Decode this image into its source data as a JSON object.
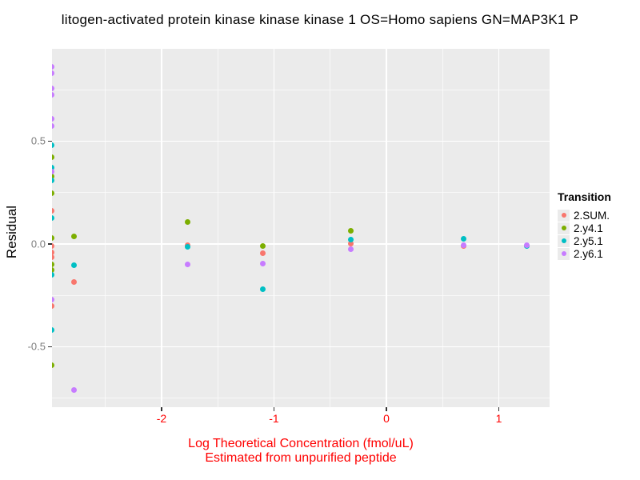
{
  "title": "litogen-activated protein kinase kinase kinase 1 OS=Homo sapiens GN=MAP3K1 P",
  "chart_data": {
    "type": "scatter",
    "title": "litogen-activated protein kinase kinase kinase 1 OS=Homo sapiens GN=MAP3K1 P",
    "xlabel": "Log Theoretical Concentration (fmol/uL)",
    "xlabel2": "Estimated from unpurified peptide",
    "ylabel": "Residual",
    "xlim": [
      -2.975,
      1.452
    ],
    "ylim": [
      -0.794,
      0.949
    ],
    "grid": true,
    "x_ticks": {
      "values": [
        -2,
        -1,
        0,
        1
      ],
      "labels": [
        "-2",
        "-1",
        "0",
        "1"
      ],
      "minor": [
        -2.5,
        -1.5,
        -0.5,
        0.5,
        1.5
      ]
    },
    "y_ticks": {
      "values": [
        0.5,
        0.0,
        -0.5
      ],
      "labels": [
        "0.5",
        "0.0",
        "-0.5"
      ],
      "minor": [
        0.75,
        0.25,
        -0.25,
        -0.75
      ]
    },
    "legend": {
      "title": "Transition",
      "position": "right"
    },
    "series": [
      {
        "name": "2.SUM.",
        "color": "#F8766D",
        "points": [
          [
            -2.98,
            0.16
          ],
          [
            -2.98,
            -0.01
          ],
          [
            -2.98,
            -0.04
          ],
          [
            -2.98,
            -0.065
          ],
          [
            -2.98,
            -0.3
          ],
          [
            -2.78,
            -0.185
          ],
          [
            -1.77,
            -0.005
          ],
          [
            -1.1,
            -0.045
          ],
          [
            -0.32,
            0.0
          ],
          [
            0.69,
            -0.01
          ]
        ]
      },
      {
        "name": "2.y4.1",
        "color": "#7CAE00",
        "points": [
          [
            -2.98,
            0.42
          ],
          [
            -2.98,
            0.33
          ],
          [
            -2.98,
            0.245
          ],
          [
            -2.98,
            0.03
          ],
          [
            -2.98,
            -0.1
          ],
          [
            -2.98,
            -0.125
          ],
          [
            -2.98,
            -0.59
          ],
          [
            -2.78,
            0.035
          ],
          [
            -1.77,
            0.105
          ],
          [
            -1.1,
            -0.01
          ],
          [
            -0.32,
            0.065
          ]
        ]
      },
      {
        "name": "2.y5.1",
        "color": "#00BFC4",
        "points": [
          [
            -2.98,
            0.48
          ],
          [
            -2.98,
            0.37
          ],
          [
            -2.98,
            0.31
          ],
          [
            -2.98,
            0.125
          ],
          [
            -2.98,
            -0.15
          ],
          [
            -2.98,
            -0.42
          ],
          [
            -2.78,
            -0.105
          ],
          [
            -1.77,
            -0.015
          ],
          [
            -1.1,
            -0.22
          ],
          [
            -0.32,
            0.02
          ],
          [
            0.69,
            0.025
          ],
          [
            1.25,
            -0.01
          ]
        ]
      },
      {
        "name": "2.y6.1",
        "color": "#C77CFF",
        "points": [
          [
            -2.98,
            0.86
          ],
          [
            -2.98,
            0.83
          ],
          [
            -2.98,
            0.755
          ],
          [
            -2.98,
            0.725
          ],
          [
            -2.98,
            0.61
          ],
          [
            -2.98,
            0.575
          ],
          [
            -2.98,
            0.35
          ],
          [
            -2.98,
            -0.27
          ],
          [
            -2.78,
            -0.71
          ],
          [
            -1.77,
            -0.1
          ],
          [
            -1.1,
            -0.097
          ],
          [
            -0.32,
            -0.025
          ],
          [
            0.69,
            -0.005
          ],
          [
            1.25,
            -0.005
          ]
        ]
      }
    ]
  },
  "colors": {
    "panel_bg": "#EBEBEB",
    "grid_major": "#FFFFFF",
    "grid_minor": "rgba(255,255,255,0.6)",
    "tick_mark": "#333333",
    "y_tick_text": "#7E7E7E",
    "x_tick_text": "#FF0000",
    "x_axis_title_text": "#FF0000",
    "y_axis_title_text": "#000000",
    "title_text": "#000000",
    "legend_key_bg": "#EBEBEB"
  }
}
